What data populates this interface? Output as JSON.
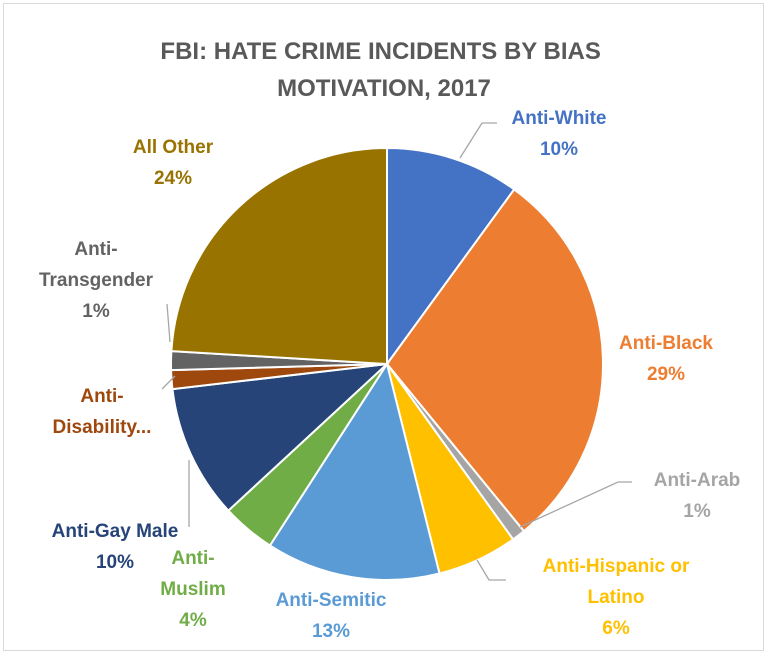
{
  "chart_data": {
    "type": "pie",
    "title_lines": [
      "FBI: HATE CRIME INCIDENTS BY BIAS",
      "MOTIVATION, 2017"
    ],
    "legend": "none",
    "slices": [
      {
        "label_lines": [
          "Anti-White"
        ],
        "pct_label": "10%",
        "value": 10,
        "color": "#4472c4"
      },
      {
        "label_lines": [
          "Anti-Black"
        ],
        "pct_label": "29%",
        "value": 29,
        "color": "#ed7d31"
      },
      {
        "label_lines": [
          "Anti-Arab"
        ],
        "pct_label": "1%",
        "value": 1,
        "color": "#a5a5a5",
        "label_color": "#a5a5a5"
      },
      {
        "label_lines": [
          "Anti-Hispanic or",
          "Latino"
        ],
        "pct_label": "6%",
        "value": 6,
        "color": "#ffc000"
      },
      {
        "label_lines": [
          "Anti-Semitic"
        ],
        "pct_label": "13%",
        "value": 13,
        "color": "#5b9bd5"
      },
      {
        "label_lines": [
          "Anti-",
          "Muslim"
        ],
        "pct_label": "4%",
        "value": 4,
        "color": "#70ad47"
      },
      {
        "label_lines": [
          "Anti-Gay Male"
        ],
        "pct_label": "10%",
        "value": 10,
        "color": "#264478"
      },
      {
        "label_lines": [
          "Anti-",
          "Disability..."
        ],
        "pct_label": "",
        "value": 1.4,
        "color": "#9e480e"
      },
      {
        "label_lines": [
          "Anti-",
          "Transgender"
        ],
        "pct_label": "1%",
        "value": 1.4,
        "color": "#636363"
      },
      {
        "label_lines": [
          "All Other"
        ],
        "pct_label": "24%",
        "value": 24,
        "color": "#997300"
      }
    ]
  }
}
